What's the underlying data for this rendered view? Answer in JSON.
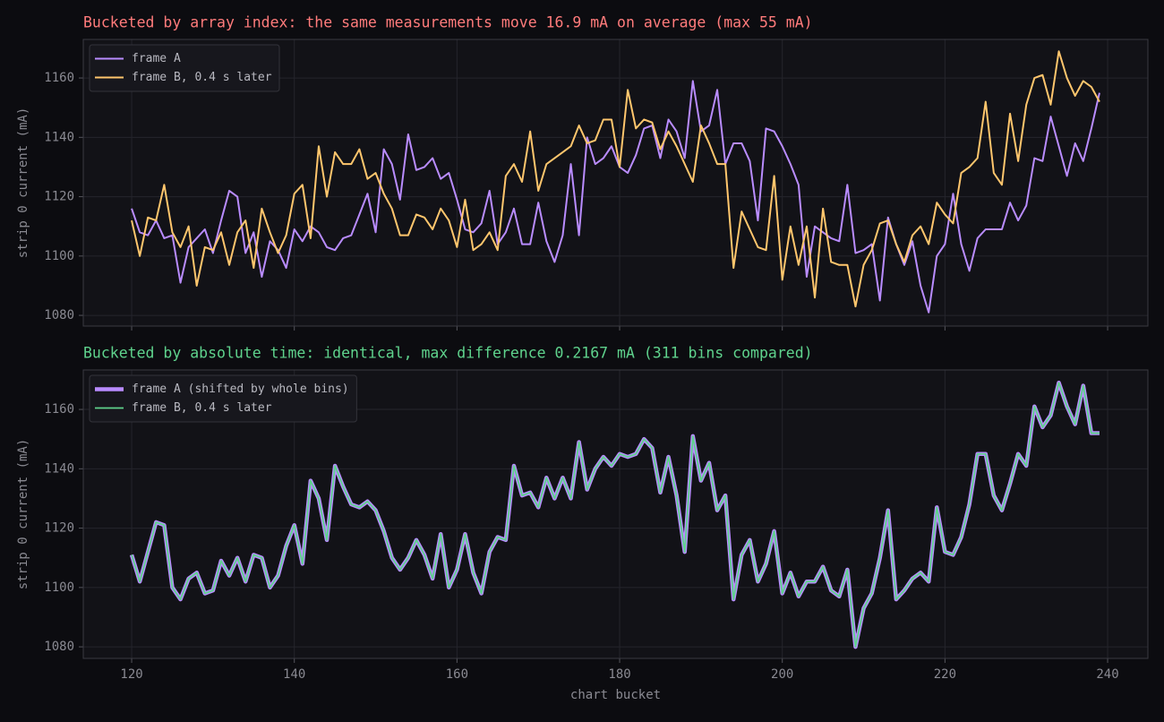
{
  "chart_data": [
    {
      "type": "line",
      "title": "Bucketed by array index: the same measurements move 16.9 mA on average (max 55 mA)",
      "title_color": "#ff7b7b",
      "y_label": "strip 0 current (mA)",
      "x": [
        120,
        121,
        122,
        123,
        124,
        125,
        126,
        127,
        128,
        129,
        130,
        131,
        132,
        133,
        134,
        135,
        136,
        137,
        138,
        139,
        140,
        141,
        142,
        143,
        144,
        145,
        146,
        147,
        148,
        149,
        150,
        151,
        152,
        153,
        154,
        155,
        156,
        157,
        158,
        159,
        160,
        161,
        162,
        163,
        164,
        165,
        166,
        167,
        168,
        169,
        170,
        171,
        172,
        173,
        174,
        175,
        176,
        177,
        178,
        179,
        180,
        181,
        182,
        183,
        184,
        185,
        186,
        187,
        188,
        189,
        190,
        191,
        192,
        193,
        194,
        195,
        196,
        197,
        198,
        199,
        200,
        201,
        202,
        203,
        204,
        205,
        206,
        207,
        208,
        209,
        210,
        211,
        212,
        213,
        214,
        215,
        216,
        217,
        218,
        219,
        220,
        221,
        222,
        223,
        224,
        225,
        226,
        227,
        228,
        229,
        230,
        231,
        232,
        233,
        234,
        235,
        236,
        237,
        238,
        239
      ],
      "series": [
        {
          "name": "frame A",
          "color": "#b98cff",
          "linewidth": 2,
          "values": [
            1116,
            1108,
            1107,
            1112,
            1106,
            1107,
            1091,
            1103,
            1106,
            1109,
            1101,
            1112,
            1122,
            1120,
            1101,
            1108,
            1093,
            1105,
            1102,
            1096,
            1109,
            1105,
            1110,
            1108,
            1103,
            1102,
            1106,
            1107,
            1114,
            1121,
            1108,
            1136,
            1131,
            1119,
            1141,
            1129,
            1130,
            1133,
            1126,
            1128,
            1119,
            1109,
            1108,
            1111,
            1122,
            1104,
            1108,
            1116,
            1104,
            1104,
            1118,
            1105,
            1098,
            1107,
            1131,
            1107,
            1140,
            1131,
            1133,
            1137,
            1130,
            1128,
            1134,
            1143,
            1144,
            1133,
            1146,
            1142,
            1133,
            1159,
            1142,
            1144,
            1156,
            1131,
            1138,
            1138,
            1132,
            1112,
            1143,
            1142,
            1137,
            1131,
            1124,
            1093,
            1110,
            1108,
            1106,
            1105,
            1124,
            1101,
            1102,
            1104,
            1085,
            1113,
            1104,
            1097,
            1105,
            1090,
            1081,
            1100,
            1104,
            1121,
            1104,
            1095,
            1106,
            1109,
            1109,
            1109,
            1118,
            1112,
            1117,
            1133,
            1132,
            1147,
            1137,
            1127,
            1138,
            1132,
            1143,
            1155
          ]
        },
        {
          "name": "frame B, 0.4 s later",
          "color": "#ffc66d",
          "linewidth": 2,
          "values": [
            1112,
            1100,
            1113,
            1112,
            1124,
            1108,
            1103,
            1110,
            1090,
            1103,
            1102,
            1108,
            1097,
            1108,
            1112,
            1096,
            1116,
            1108,
            1101,
            1107,
            1121,
            1124,
            1106,
            1137,
            1120,
            1135,
            1131,
            1131,
            1136,
            1126,
            1128,
            1121,
            1116,
            1107,
            1107,
            1114,
            1113,
            1109,
            1116,
            1112,
            1103,
            1119,
            1102,
            1104,
            1108,
            1102,
            1127,
            1131,
            1125,
            1142,
            1122,
            1131,
            1133,
            1135,
            1137,
            1144,
            1138,
            1139,
            1146,
            1146,
            1130,
            1156,
            1143,
            1146,
            1145,
            1136,
            1142,
            1137,
            1131,
            1125,
            1144,
            1138,
            1131,
            1131,
            1096,
            1115,
            1109,
            1103,
            1102,
            1127,
            1092,
            1110,
            1097,
            1110,
            1086,
            1116,
            1098,
            1097,
            1097,
            1083,
            1097,
            1102,
            1111,
            1112,
            1104,
            1098,
            1107,
            1110,
            1104,
            1118,
            1114,
            1111,
            1128,
            1130,
            1133,
            1152,
            1128,
            1124,
            1148,
            1132,
            1151,
            1160,
            1161,
            1151,
            1169,
            1160,
            1154,
            1159,
            1157,
            1152
          ]
        }
      ],
      "xlim": [
        114.05,
        244.95
      ],
      "xticks": [
        120,
        140,
        160,
        180,
        200,
        220,
        240
      ],
      "ylim": [
        1076.4,
        1173
      ],
      "yticks": [
        1080,
        1100,
        1120,
        1140,
        1160
      ],
      "grid": true,
      "legend": "upper left"
    },
    {
      "type": "line",
      "title": "Bucketed by absolute time: identical, max difference 0.2167 mA (311 bins compared)",
      "title_color": "#5fd38d",
      "y_label": "strip 0 current (mA)",
      "x_label": "chart bucket",
      "x": [
        120,
        121,
        122,
        123,
        124,
        125,
        126,
        127,
        128,
        129,
        130,
        131,
        132,
        133,
        134,
        135,
        136,
        137,
        138,
        139,
        140,
        141,
        142,
        143,
        144,
        145,
        146,
        147,
        148,
        149,
        150,
        151,
        152,
        153,
        154,
        155,
        156,
        157,
        158,
        159,
        160,
        161,
        162,
        163,
        164,
        165,
        166,
        167,
        168,
        169,
        170,
        171,
        172,
        173,
        174,
        175,
        176,
        177,
        178,
        179,
        180,
        181,
        182,
        183,
        184,
        185,
        186,
        187,
        188,
        189,
        190,
        191,
        192,
        193,
        194,
        195,
        196,
        197,
        198,
        199,
        200,
        201,
        202,
        203,
        204,
        205,
        206,
        207,
        208,
        209,
        210,
        211,
        212,
        213,
        214,
        215,
        216,
        217,
        218,
        219,
        220,
        221,
        222,
        223,
        224,
        225,
        226,
        227,
        228,
        229,
        230,
        231,
        232,
        233,
        234,
        235,
        236,
        237,
        238,
        239
      ],
      "series": [
        {
          "name": "frame A (shifted by whole bins)",
          "color": "#b98cff",
          "linewidth": 4.5,
          "values": [
            1111,
            1102,
            1112,
            1122,
            1121,
            1100,
            1096,
            1103,
            1105,
            1098,
            1099,
            1109,
            1104,
            1110,
            1102,
            1111,
            1110,
            1100,
            1104,
            1114,
            1121,
            1108,
            1136,
            1130,
            1116,
            1141,
            1134,
            1128,
            1127,
            1129,
            1126,
            1119,
            1110,
            1106,
            1110,
            1116,
            1111,
            1103,
            1118,
            1100,
            1106,
            1118,
            1105,
            1098,
            1112,
            1117,
            1116,
            1141,
            1131,
            1132,
            1127,
            1137,
            1130,
            1137,
            1130,
            1149,
            1133,
            1140,
            1144,
            1141,
            1145,
            1144,
            1145,
            1150,
            1147,
            1132,
            1144,
            1131,
            1112,
            1151,
            1136,
            1142,
            1126,
            1131,
            1096,
            1111,
            1116,
            1102,
            1108,
            1119,
            1098,
            1105,
            1097,
            1102,
            1102,
            1107,
            1099,
            1097,
            1106,
            1080,
            1093,
            1098,
            1110,
            1126,
            1096,
            1099,
            1103,
            1105,
            1102,
            1127,
            1112,
            1111,
            1117,
            1128,
            1145,
            1145,
            1131,
            1126,
            1135,
            1145,
            1141,
            1161,
            1154,
            1158,
            1169,
            1161,
            1155,
            1168,
            1152,
            1152
          ]
        },
        {
          "name": "frame B, 0.4 s later",
          "color": "#5fd38d",
          "linewidth": 1.8,
          "values": [
            1111,
            1102,
            1112,
            1122,
            1121,
            1100,
            1096,
            1103,
            1105,
            1098,
            1099,
            1109,
            1104,
            1110,
            1102,
            1111,
            1110,
            1100,
            1104,
            1114,
            1121,
            1108,
            1136,
            1130,
            1116,
            1141,
            1134,
            1128,
            1127,
            1129,
            1126,
            1119,
            1110,
            1106,
            1110,
            1116,
            1111,
            1103,
            1118,
            1100,
            1106,
            1118,
            1105,
            1098,
            1112,
            1117,
            1116,
            1141,
            1131,
            1132,
            1127,
            1137,
            1130,
            1137,
            1130,
            1149,
            1133,
            1140,
            1144,
            1141,
            1145,
            1144,
            1145,
            1150,
            1147,
            1132,
            1144,
            1131,
            1112,
            1151,
            1136,
            1142,
            1126,
            1131,
            1096,
            1111,
            1116,
            1102,
            1108,
            1119,
            1098,
            1105,
            1097,
            1102,
            1102,
            1107,
            1099,
            1097,
            1106,
            1080,
            1093,
            1098,
            1110,
            1126,
            1096,
            1099,
            1103,
            1105,
            1102,
            1127,
            1112,
            1111,
            1117,
            1128,
            1145,
            1145,
            1131,
            1126,
            1135,
            1145,
            1141,
            1161,
            1154,
            1158,
            1169,
            1161,
            1155,
            1168,
            1152,
            1152
          ]
        }
      ],
      "xlim": [
        114.05,
        244.95
      ],
      "xticks": [
        120,
        140,
        160,
        180,
        200,
        220,
        240
      ],
      "ylim": [
        1076.1,
        1173.3
      ],
      "yticks": [
        1080,
        1100,
        1120,
        1140,
        1160
      ],
      "grid": true,
      "legend": "upper left"
    }
  ]
}
